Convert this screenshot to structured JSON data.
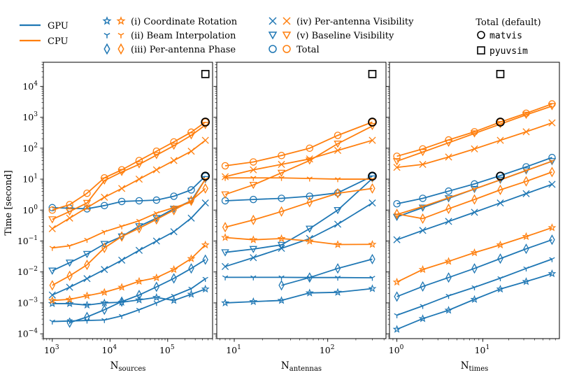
{
  "legend": {
    "device": [
      {
        "label": "GPU",
        "color": "#1f77b4"
      },
      {
        "label": "CPU",
        "color": "#ff7f0e"
      }
    ],
    "components": [
      {
        "label": "(i) Coordinate Rotation",
        "marker": "star"
      },
      {
        "label": "(ii) Beam Interpolation",
        "marker": "tri_down"
      },
      {
        "label": "(iii) Per-antenna Phase",
        "marker": "diamond"
      },
      {
        "label": "(iv) Per-antenna Visibility",
        "marker": "x"
      },
      {
        "label": "(v) Baseline Visibility",
        "marker": "triangle_down"
      },
      {
        "label": "Total",
        "marker": "circle"
      }
    ],
    "total_title": "Total (default)",
    "total_items": [
      {
        "label": "matvis",
        "marker": "circle"
      },
      {
        "label": "pyuvsim",
        "marker": "square"
      }
    ]
  },
  "chart_data": [
    {
      "type": "line",
      "xlabel": "N",
      "xlabel_sub": "sources",
      "ylabel": "Time [second]",
      "xscale": "log",
      "yscale": "log",
      "xlim": [
        700,
        600000
      ],
      "ylim": [
        7e-05,
        60000
      ],
      "xticks": [
        {
          "v": 1000,
          "b": "10",
          "e": "3"
        },
        {
          "v": 10000,
          "b": "10",
          "e": "4"
        },
        {
          "v": 100000,
          "b": "10",
          "e": "5"
        }
      ],
      "yticks": [
        {
          "v": 0.0001,
          "b": "10",
          "e": "−4"
        },
        {
          "v": 0.001,
          "b": "10",
          "e": "−3"
        },
        {
          "v": 0.01,
          "b": "10",
          "e": "−2"
        },
        {
          "v": 0.1,
          "b": "10",
          "e": "−1"
        },
        {
          "v": 1,
          "b": "10",
          "e": "0"
        },
        {
          "v": 10,
          "b": "10",
          "e": "1"
        },
        {
          "v": 100,
          "b": "10",
          "e": "2"
        },
        {
          "v": 1000,
          "b": "10",
          "e": "3"
        },
        {
          "v": 10000,
          "b": "10",
          "e": "4"
        }
      ],
      "x": [
        1000,
        2000,
        4000,
        8000,
        16000,
        32000,
        64000,
        128000,
        256000,
        450000
      ],
      "series": [
        {
          "device": "GPU",
          "component": "Coordinate Rotation",
          "marker": "star",
          "values": [
            0.00095,
            0.00095,
            0.00085,
            0.001,
            0.00105,
            0.00125,
            0.0015,
            0.0012,
            0.0019,
            0.0028
          ]
        },
        {
          "device": "GPU",
          "component": "Beam Interpolation",
          "marker": "tri_down",
          "values": [
            0.00025,
            0.00026,
            0.00027,
            0.00028,
            0.00038,
            0.0006,
            0.001,
            0.0017,
            0.0029,
            0.006
          ]
        },
        {
          "device": "GPU",
          "component": "Per-antenna Phase",
          "marker": "diamond",
          "values": [
            null,
            0.00023,
            0.00035,
            0.0006,
            0.0011,
            0.0018,
            0.0033,
            0.0062,
            0.013,
            0.025
          ]
        },
        {
          "device": "GPU",
          "component": "Per-antenna Visibility",
          "marker": "x",
          "values": [
            0.0018,
            0.0032,
            0.0061,
            0.012,
            0.024,
            0.05,
            0.1,
            0.2,
            0.55,
            1.7
          ]
        },
        {
          "device": "GPU",
          "component": "Baseline Visibility",
          "marker": "triangle_down",
          "values": [
            0.011,
            0.02,
            0.038,
            0.08,
            0.14,
            0.3,
            0.55,
            1.1,
            2.0,
            10
          ]
        },
        {
          "device": "GPU",
          "component": "Total",
          "marker": "circle",
          "values": [
            1.2,
            1.15,
            1.1,
            1.4,
            1.9,
            2.0,
            2.1,
            2.8,
            4.5,
            12.5
          ]
        },
        {
          "device": "CPU",
          "component": "Coordinate Rotation",
          "marker": "star",
          "values": [
            0.0012,
            0.0013,
            0.0017,
            0.0022,
            0.0032,
            0.005,
            0.0065,
            0.012,
            0.027,
            0.075
          ]
        },
        {
          "device": "CPU",
          "component": "Beam Interpolation",
          "marker": "tri_down",
          "values": [
            0.06,
            0.07,
            0.11,
            0.2,
            0.3,
            0.45,
            0.8,
            1.2,
            1.8,
            10
          ]
        },
        {
          "device": "CPU",
          "component": "Per-antenna Phase",
          "marker": "diamond",
          "values": [
            0.0037,
            0.0075,
            0.017,
            0.06,
            0.14,
            0.26,
            0.5,
            1.0,
            2.0,
            5.0
          ]
        },
        {
          "device": "CPU",
          "component": "Per-antenna Visibility",
          "marker": "x",
          "values": [
            0.25,
            0.55,
            1.2,
            2.6,
            5.0,
            10,
            20,
            40,
            80,
            180
          ]
        },
        {
          "device": "CPU",
          "component": "Baseline Visibility",
          "marker": "triangle_down",
          "values": [
            0.5,
            0.9,
            1.7,
            9.0,
            17,
            30,
            60,
            120,
            260,
            560
          ]
        },
        {
          "device": "CPU",
          "component": "Total",
          "marker": "circle",
          "values": [
            1.0,
            1.5,
            3.5,
            11,
            20,
            40,
            80,
            160,
            330,
            700
          ]
        }
      ],
      "defaults": [
        {
          "label": "matvis",
          "marker": "circle",
          "points": [
            [
              450000,
              12.5
            ],
            [
              450000,
              700
            ]
          ]
        },
        {
          "label": "pyuvsim",
          "marker": "square",
          "points": [
            [
              450000,
              25000
            ]
          ]
        }
      ]
    },
    {
      "type": "line",
      "xlabel": "N",
      "xlabel_sub": "antennas",
      "xscale": "log",
      "yscale": "log",
      "xlim": [
        6.5,
        420
      ],
      "ylim": [
        7e-05,
        60000
      ],
      "xticks": [
        {
          "v": 10,
          "b": "10",
          "e": "1"
        },
        {
          "v": 100,
          "b": "10",
          "e": "2"
        }
      ],
      "x": [
        8,
        16,
        32,
        64,
        128,
        300
      ],
      "series": [
        {
          "device": "GPU",
          "component": "Coordinate Rotation",
          "marker": "star",
          "values": [
            0.001,
            0.0011,
            0.0012,
            0.0021,
            0.0022,
            0.0029
          ]
        },
        {
          "device": "GPU",
          "component": "Beam Interpolation",
          "marker": "tri_down",
          "values": [
            0.0067,
            0.0067,
            0.0067,
            0.0066,
            0.0066,
            0.0065
          ]
        },
        {
          "device": "GPU",
          "component": "Per-antenna Phase",
          "marker": "diamond",
          "values": [
            null,
            null,
            0.0037,
            0.0066,
            0.013,
            0.026
          ]
        },
        {
          "device": "GPU",
          "component": "Per-antenna Visibility",
          "marker": "x",
          "values": [
            0.015,
            0.029,
            0.058,
            0.12,
            0.35,
            1.7
          ]
        },
        {
          "device": "GPU",
          "component": "Baseline Visibility",
          "marker": "triangle_down",
          "values": [
            0.043,
            0.055,
            0.075,
            0.25,
            1.0,
            10.5
          ]
        },
        {
          "device": "GPU",
          "component": "Total",
          "marker": "circle",
          "values": [
            2.0,
            2.2,
            2.4,
            2.8,
            3.6,
            12.5
          ]
        },
        {
          "device": "CPU",
          "component": "Coordinate Rotation",
          "marker": "star",
          "values": [
            0.13,
            0.11,
            0.12,
            0.1,
            0.077,
            0.078
          ]
        },
        {
          "device": "CPU",
          "component": "Beam Interpolation",
          "marker": "tri_down",
          "values": [
            11,
            11,
            11,
            10.5,
            10,
            10
          ]
        },
        {
          "device": "CPU",
          "component": "Per-antenna Phase",
          "marker": "diamond",
          "values": [
            0.28,
            0.48,
            0.9,
            1.8,
            3.5,
            5.0
          ]
        },
        {
          "device": "CPU",
          "component": "Per-antenna Visibility",
          "marker": "x",
          "values": [
            12,
            20,
            30,
            45,
            85,
            180
          ]
        },
        {
          "device": "CPU",
          "component": "Baseline Visibility",
          "marker": "triangle_down",
          "values": [
            3.2,
            6.5,
            16,
            40,
            140,
            520
          ]
        },
        {
          "device": "CPU",
          "component": "Total",
          "marker": "circle",
          "values": [
            27,
            36,
            58,
            100,
            260,
            700
          ]
        }
      ],
      "defaults": [
        {
          "label": "matvis",
          "marker": "circle",
          "points": [
            [
              300,
              12.5
            ],
            [
              300,
              700
            ]
          ]
        },
        {
          "label": "pyuvsim",
          "marker": "square",
          "points": [
            [
              300,
              25000
            ]
          ]
        }
      ]
    },
    {
      "type": "line",
      "xlabel": "N",
      "xlabel_sub": "times",
      "xscale": "log",
      "yscale": "log",
      "xlim": [
        0.82,
        78
      ],
      "ylim": [
        7e-05,
        60000
      ],
      "xticks": [
        {
          "v": 1,
          "b": "10",
          "e": "0"
        },
        {
          "v": 10,
          "b": "10",
          "e": "1"
        }
      ],
      "x": [
        1,
        2,
        4,
        8,
        16,
        32,
        64
      ],
      "series": [
        {
          "device": "GPU",
          "component": "Coordinate Rotation",
          "marker": "star",
          "values": [
            0.00014,
            0.00031,
            0.00058,
            0.0013,
            0.0028,
            0.0049,
            0.0088
          ]
        },
        {
          "device": "GPU",
          "component": "Beam Interpolation",
          "marker": "tri_down",
          "values": [
            0.0004,
            0.0008,
            0.0017,
            0.0032,
            0.0063,
            0.013,
            0.026
          ]
        },
        {
          "device": "GPU",
          "component": "Per-antenna Phase",
          "marker": "diamond",
          "values": [
            0.0016,
            0.0034,
            0.0066,
            0.013,
            0.027,
            0.056,
            0.11
          ]
        },
        {
          "device": "GPU",
          "component": "Per-antenna Visibility",
          "marker": "x",
          "values": [
            0.11,
            0.22,
            0.43,
            0.85,
            1.7,
            3.4,
            6.8
          ]
        },
        {
          "device": "GPU",
          "component": "Baseline Visibility",
          "marker": "triangle_down",
          "values": [
            0.6,
            1.2,
            2.4,
            4.8,
            9.5,
            19,
            38
          ]
        },
        {
          "device": "GPU",
          "component": "Total",
          "marker": "circle",
          "values": [
            1.6,
            2.4,
            4.1,
            7.0,
            13,
            25,
            50
          ]
        },
        {
          "device": "CPU",
          "component": "Coordinate Rotation",
          "marker": "star",
          "values": [
            0.0047,
            0.012,
            0.022,
            0.042,
            0.075,
            0.14,
            0.27
          ]
        },
        {
          "device": "CPU",
          "component": "Beam Interpolation",
          "marker": "tri_down",
          "values": [
            0.72,
            1.3,
            2.5,
            4.8,
            9.5,
            19,
            38
          ]
        },
        {
          "device": "CPU",
          "component": "Per-antenna Phase",
          "marker": "diamond",
          "values": [
            0.75,
            0.53,
            1.1,
            2.2,
            4.5,
            8.5,
            17
          ]
        },
        {
          "device": "CPU",
          "component": "Per-antenna Visibility",
          "marker": "x",
          "values": [
            24,
            30,
            52,
            95,
            180,
            340,
            660
          ]
        },
        {
          "device": "CPU",
          "component": "Baseline Visibility",
          "marker": "triangle_down",
          "values": [
            38,
            75,
            150,
            300,
            600,
            1200,
            2300
          ]
        },
        {
          "device": "CPU",
          "component": "Total",
          "marker": "circle",
          "values": [
            55,
            95,
            185,
            340,
            700,
            1350,
            2700
          ]
        }
      ],
      "defaults": [
        {
          "label": "matvis",
          "marker": "circle",
          "points": [
            [
              16,
              12.5
            ],
            [
              16,
              700
            ]
          ]
        },
        {
          "label": "pyuvsim",
          "marker": "square",
          "points": [
            [
              16,
              25000
            ]
          ]
        }
      ]
    }
  ]
}
